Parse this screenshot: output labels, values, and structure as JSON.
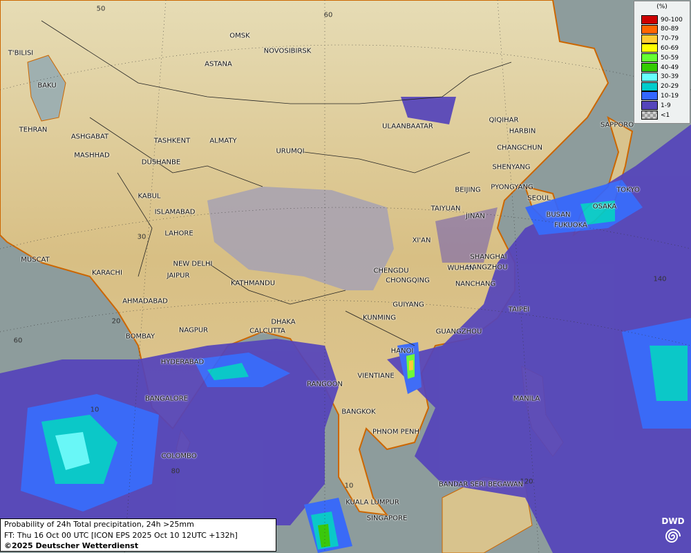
{
  "map": {
    "title": "Probability of 24h Total precipitation, 24h >25mm",
    "forecast_line": "FT: Thu 16 Oct 00 UTC [ICON EPS 2025 Oct 10 12UTC +132h]",
    "copyright": "©2025 Deutscher Wetterdienst",
    "logo_text": "DWD",
    "colors": {
      "sea": "#8d9c9c",
      "land": "#d9c48e",
      "plateau": "#a9a3b0",
      "country_border": "#222222",
      "coast": "#cc6600"
    }
  },
  "legend": {
    "unit": "(%)",
    "items": [
      {
        "label": "90-100",
        "color": "#cc0000"
      },
      {
        "label": "80-89",
        "color": "#ff6600"
      },
      {
        "label": "70-79",
        "color": "#ffcc33"
      },
      {
        "label": "60-69",
        "color": "#ffff00"
      },
      {
        "label": "50-59",
        "color": "#66ff33"
      },
      {
        "label": "40-49",
        "color": "#33cc00"
      },
      {
        "label": "30-39",
        "color": "#66ffff"
      },
      {
        "label": "20-29",
        "color": "#00cccc"
      },
      {
        "label": "10-19",
        "color": "#3366ff"
      },
      {
        "label": "1-9",
        "color": "#5544bb"
      },
      {
        "label": "<1",
        "color": "checker"
      }
    ]
  },
  "grid_labels": [
    "50",
    "60",
    "30",
    "20",
    "60",
    "10",
    "80",
    "140",
    "120",
    "10"
  ],
  "cities": [
    "OMSK",
    "NOVOSIBIRSK",
    "ASTANA",
    "T'BILISI",
    "BAKU",
    "TEHRAN",
    "ASHGABAT",
    "MASHHAD",
    "TASHKENT",
    "ALMATY",
    "DUSHANBE",
    "URUMQI",
    "ULAANBAATAR",
    "QIQIHAR",
    "HARBIN",
    "CHANGCHUN",
    "SHENYANG",
    "BEIJING",
    "PYONGYANG",
    "SEOUL",
    "TOKYO",
    "SAPPORO",
    "OSAKA",
    "BUSAN",
    "FUKUOKA",
    "KABUL",
    "ISLAMABAD",
    "LAHORE",
    "TAIYUAN",
    "JINAN",
    "XI'AN",
    "SHANGHAI",
    "HANGZHOU",
    "WUHAN",
    "CHENGDU",
    "CHONGQING",
    "NANCHANG",
    "NEW DELHI",
    "JAIPUR",
    "MUSCAT",
    "KARACHI",
    "KATHMANDU",
    "GUIYANG",
    "TAIPEI",
    "KUNMING",
    "AHMADABAD",
    "DHAKA",
    "NAGPUR",
    "CALCUTTA",
    "GUANGZHOU",
    "BOMBAY",
    "HANOI",
    "HYDERABAD",
    "RANGOON",
    "VIENTIANE",
    "MANILA",
    "BANGALORE",
    "BANGKOK",
    "PHNOM PENH",
    "COLOMBO",
    "BANDAR SERI BEGAWAN",
    "KUALA LUMPUR",
    "SINGAPORE"
  ]
}
